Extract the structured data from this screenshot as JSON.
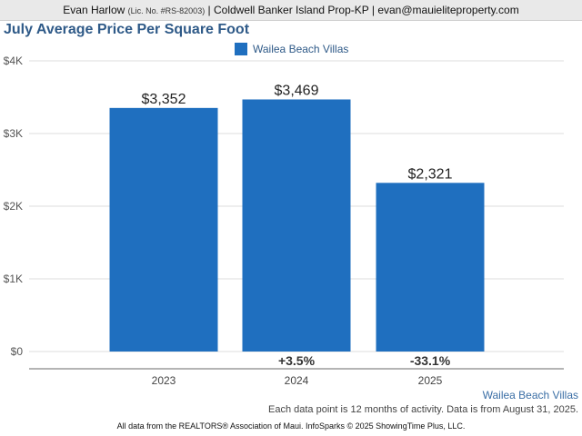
{
  "header": {
    "agent_name": "Evan Harlow",
    "license": "(Lic. No. #RS-82003)",
    "brokerage": "| Coldwell Banker Island Prop-KP |",
    "email": "evan@mauieliteproperty.com"
  },
  "colors": {
    "bar": "#1f6fbf",
    "title": "#2f5a88",
    "grid": "#dddddd",
    "axis": "#888888"
  },
  "chart_data": {
    "type": "bar",
    "title": "July Average Price Per Square Foot",
    "categories": [
      "2023",
      "2024",
      "2025"
    ],
    "series": [
      {
        "name": "Wailea Beach Villas",
        "values": [
          3352,
          3469,
          2321
        ]
      }
    ],
    "data_labels": [
      "$3,352",
      "$3,469",
      "$2,321"
    ],
    "change_labels": [
      "",
      "+3.5%",
      "-33.1%"
    ],
    "yticks": [
      {
        "value": 0,
        "label": "$0"
      },
      {
        "value": 1000,
        "label": "$1K"
      },
      {
        "value": 2000,
        "label": "$2K"
      },
      {
        "value": 3000,
        "label": "$3K"
      },
      {
        "value": 4000,
        "label": "$4K"
      }
    ],
    "ylim": [
      0,
      4000
    ],
    "xlabel": "",
    "ylabel": "",
    "grid": true,
    "legend_position": "top-center"
  },
  "source_label": "Wailea Beach Villas",
  "note": "Each data point is 12 months of activity. Data is from August 31, 2025.",
  "footer": "All data from the REALTORS® Association of Maui. InfoSparks © 2025 ShowingTime Plus, LLC."
}
